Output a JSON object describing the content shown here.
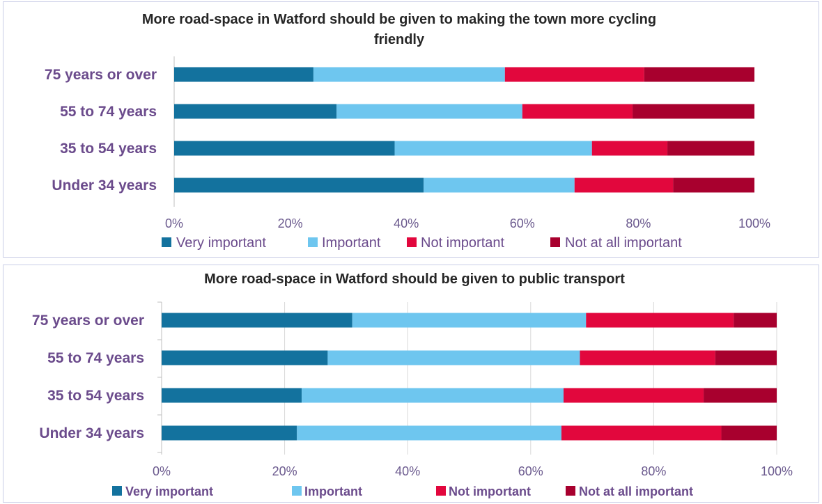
{
  "colors": {
    "very_important": "#13729e",
    "important": "#6ec6ef",
    "not_important": "#e2073d",
    "not_at_all_important": "#a8002e"
  },
  "chart_data": [
    {
      "type": "bar",
      "orientation": "horizontal",
      "stacked": "percent",
      "title": "More road-space in Watford should be given to making the town more cycling friendly",
      "categories": [
        "75 years or over",
        "55 to 74 years",
        "35 to 54 years",
        "Under 34 years"
      ],
      "series": [
        {
          "name": "Very important",
          "values": [
            24,
            28,
            38,
            43
          ]
        },
        {
          "name": "Important",
          "values": [
            33,
            32,
            34,
            26
          ]
        },
        {
          "name": "Not important",
          "values": [
            24,
            19,
            13,
            17
          ]
        },
        {
          "name": "Not at all important",
          "values": [
            19,
            21,
            15,
            14
          ]
        }
      ],
      "xlim": [
        0,
        100
      ],
      "xticks": [
        "0%",
        "20%",
        "40%",
        "60%",
        "80%",
        "100%"
      ],
      "legend": "bottom",
      "grid": false
    },
    {
      "type": "bar",
      "orientation": "horizontal",
      "stacked": "percent",
      "title": "More road-space in Watford should be given to public transport",
      "categories": [
        "75 years or over",
        "55 to 74 years",
        "35 to 54 years",
        "Under 34 years"
      ],
      "series": [
        {
          "name": "Very important",
          "values": [
            31,
            27,
            23,
            22
          ]
        },
        {
          "name": "Important",
          "values": [
            38,
            41,
            43,
            43
          ]
        },
        {
          "name": "Not important",
          "values": [
            24,
            22,
            23,
            26
          ]
        },
        {
          "name": "Not at all important",
          "values": [
            7,
            10,
            12,
            9
          ]
        }
      ],
      "xlim": [
        0,
        100
      ],
      "xticks": [
        "0%",
        "20%",
        "40%",
        "60%",
        "80%",
        "100%"
      ],
      "legend": "bottom",
      "grid": true
    }
  ]
}
